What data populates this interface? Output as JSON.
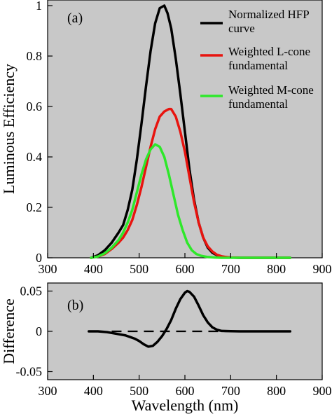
{
  "chart_data": [
    {
      "type": "line",
      "panel_label": "(a)",
      "xlabel": "",
      "ylabel": "Luminous Efficiency",
      "xlim": [
        300,
        900
      ],
      "ylim": [
        0,
        1.0
      ],
      "xticks": [
        300,
        400,
        500,
        600,
        700,
        800,
        900
      ],
      "yticks": [
        0,
        0.2,
        0.4,
        0.6,
        0.8,
        1
      ],
      "ytick_labels": [
        "0",
        "0.2",
        "0.4",
        "0.6",
        "0.8",
        "1"
      ],
      "grid": false,
      "background": "#c8c8c8",
      "legend_position": "top-right",
      "series": [
        {
          "name": "Normalized HFP curve",
          "color": "#000000",
          "x": [
            395,
            410,
            425,
            440,
            455,
            465,
            475,
            485,
            495,
            505,
            515,
            525,
            535,
            545,
            555,
            562,
            570,
            580,
            590,
            600,
            610,
            620,
            630,
            640,
            650,
            660,
            670,
            680,
            690,
            700,
            720,
            750,
            780,
            830
          ],
          "y": [
            0,
            0.01,
            0.03,
            0.06,
            0.1,
            0.13,
            0.19,
            0.27,
            0.39,
            0.53,
            0.68,
            0.82,
            0.93,
            0.99,
            1.0,
            0.97,
            0.91,
            0.79,
            0.65,
            0.5,
            0.35,
            0.23,
            0.14,
            0.08,
            0.04,
            0.02,
            0.01,
            0.005,
            0.002,
            0.001,
            0,
            0,
            0,
            0
          ]
        },
        {
          "name": "Weighted L-cone fundamental",
          "color": "#e8140f",
          "x": [
            395,
            410,
            425,
            440,
            455,
            465,
            475,
            485,
            495,
            505,
            515,
            525,
            535,
            545,
            555,
            565,
            570,
            580,
            590,
            600,
            610,
            620,
            630,
            640,
            650,
            660,
            670,
            680,
            690,
            700,
            720,
            750,
            780,
            830
          ],
          "y": [
            0,
            0.005,
            0.015,
            0.035,
            0.06,
            0.08,
            0.11,
            0.15,
            0.21,
            0.28,
            0.36,
            0.44,
            0.51,
            0.56,
            0.58,
            0.59,
            0.59,
            0.56,
            0.5,
            0.42,
            0.32,
            0.22,
            0.14,
            0.08,
            0.045,
            0.025,
            0.012,
            0.006,
            0.003,
            0.001,
            0,
            0,
            0,
            0
          ]
        },
        {
          "name": "Weighted M-cone fundamental",
          "color": "#2ee82a",
          "x": [
            395,
            410,
            425,
            440,
            455,
            465,
            475,
            485,
            495,
            505,
            515,
            525,
            535,
            545,
            555,
            565,
            575,
            585,
            595,
            605,
            615,
            625,
            635,
            650,
            665,
            680,
            700,
            720,
            750,
            780,
            830
          ],
          "y": [
            0,
            0.005,
            0.018,
            0.04,
            0.07,
            0.1,
            0.14,
            0.19,
            0.26,
            0.33,
            0.39,
            0.43,
            0.45,
            0.44,
            0.4,
            0.33,
            0.25,
            0.17,
            0.11,
            0.06,
            0.03,
            0.015,
            0.008,
            0.003,
            0.001,
            0,
            0,
            0,
            0,
            0,
            0
          ]
        }
      ]
    },
    {
      "type": "line",
      "panel_label": "(b)",
      "xlabel": "Wavelength (nm)",
      "ylabel": "Difference",
      "xlim": [
        300,
        900
      ],
      "ylim": [
        -0.06,
        0.06
      ],
      "xticks": [
        300,
        400,
        500,
        600,
        700,
        800,
        900
      ],
      "yticks": [
        -0.05,
        0,
        0.05
      ],
      "ytick_labels": [
        "-0.05",
        "0",
        "0.05"
      ],
      "grid": false,
      "background": "#c8c8c8",
      "series": [
        {
          "color": "#000000",
          "x": [
            390,
            410,
            430,
            450,
            460,
            470,
            480,
            490,
            500,
            510,
            520,
            530,
            540,
            550,
            560,
            570,
            580,
            590,
            600,
            605,
            610,
            620,
            630,
            640,
            650,
            660,
            670,
            680,
            700,
            720,
            760,
            800,
            830
          ],
          "y": [
            0,
            0,
            -0.001,
            -0.003,
            -0.004,
            -0.005,
            -0.007,
            -0.009,
            -0.012,
            -0.016,
            -0.019,
            -0.018,
            -0.013,
            -0.006,
            0.003,
            0.014,
            0.028,
            0.04,
            0.048,
            0.05,
            0.049,
            0.043,
            0.032,
            0.02,
            0.011,
            0.005,
            0.002,
            0.0005,
            0.0002,
            0,
            0,
            0,
            0
          ]
        },
        {
          "color": "#000000",
          "dashed": true,
          "x": [
            440,
            700
          ],
          "y": [
            0,
            0
          ]
        }
      ]
    }
  ]
}
